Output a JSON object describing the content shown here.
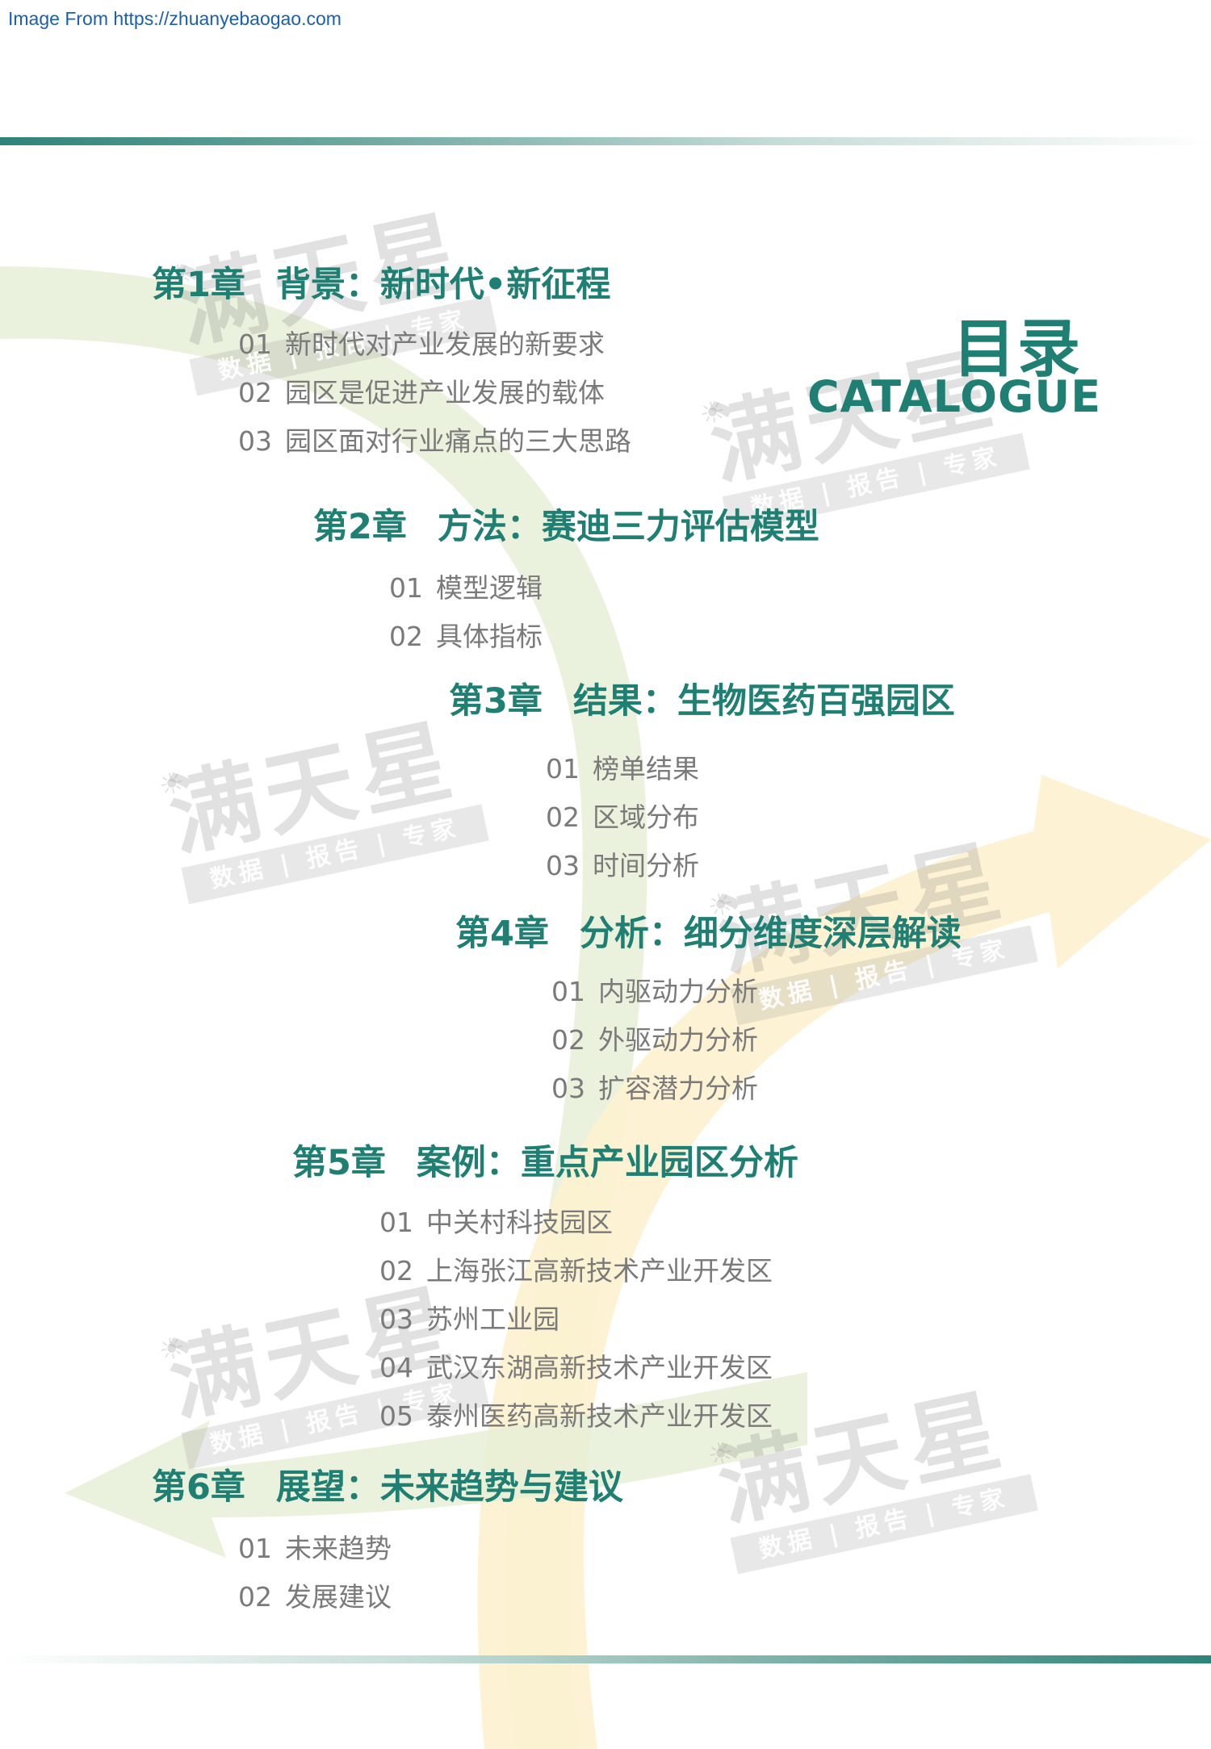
{
  "source": {
    "text": "Image From https://zhuanyebaogao.com"
  },
  "catalog": {
    "title_zh": "目录",
    "title_en": "CATALOGUE"
  },
  "watermark": {
    "name": "满天星",
    "tagline": "数据 | 报告 | 专家"
  },
  "colors": {
    "accent": "#1e7f72",
    "item_text": "#7a7a7a",
    "arc_green": "#e8efd8",
    "arc_yellow": "#fdf3d3"
  },
  "chapters": [
    {
      "number": "第1章",
      "title": "背景：新时代•新征程",
      "items": [
        {
          "num": "01",
          "text": "新时代对产业发展的新要求"
        },
        {
          "num": "02",
          "text": "园区是促进产业发展的载体"
        },
        {
          "num": "03",
          "text": "园区面对行业痛点的三大思路"
        }
      ]
    },
    {
      "number": "第2章",
      "title": "方法：赛迪三力评估模型",
      "items": [
        {
          "num": "01",
          "text": "模型逻辑"
        },
        {
          "num": "02",
          "text": "具体指标"
        }
      ]
    },
    {
      "number": "第3章",
      "title": "结果：生物医药百强园区",
      "items": [
        {
          "num": "01",
          "text": "榜单结果"
        },
        {
          "num": "02",
          "text": "区域分布"
        },
        {
          "num": "03",
          "text": "时间分析"
        }
      ]
    },
    {
      "number": "第4章",
      "title": "分析：细分维度深层解读",
      "items": [
        {
          "num": "01",
          "text": "内驱动力分析"
        },
        {
          "num": "02",
          "text": "外驱动力分析"
        },
        {
          "num": "03",
          "text": "扩容潜力分析"
        }
      ]
    },
    {
      "number": "第5章",
      "title": "案例：重点产业园区分析",
      "items": [
        {
          "num": "01",
          "text": "中关村科技园区"
        },
        {
          "num": "02",
          "text": "上海张江高新技术产业开发区"
        },
        {
          "num": "03",
          "text": "苏州工业园"
        },
        {
          "num": "04",
          "text": "武汉东湖高新技术产业开发区"
        },
        {
          "num": "05",
          "text": "泰州医药高新技术产业开发区"
        }
      ]
    },
    {
      "number": "第6章",
      "title": "展望：未来趋势与建议",
      "items": [
        {
          "num": "01",
          "text": "未来趋势"
        },
        {
          "num": "02",
          "text": "发展建议"
        }
      ]
    }
  ]
}
